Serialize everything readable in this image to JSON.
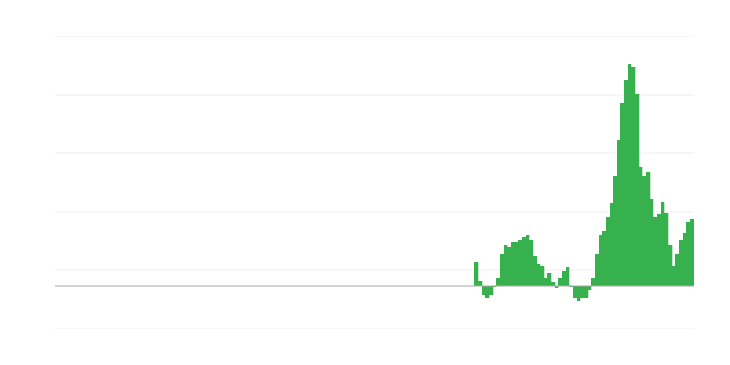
{
  "chart_data": {
    "type": "bar",
    "color": "#36b14d",
    "grid": true,
    "ylim": [
      -47,
      273
    ],
    "yticks": [
      -47,
      17,
      81,
      145,
      209,
      273
    ],
    "values": [
      null,
      null,
      null,
      null,
      null,
      null,
      null,
      null,
      null,
      null,
      null,
      null,
      null,
      null,
      null,
      null,
      null,
      null,
      null,
      null,
      null,
      null,
      null,
      null,
      null,
      null,
      null,
      null,
      null,
      null,
      null,
      null,
      null,
      null,
      null,
      null,
      null,
      null,
      null,
      null,
      null,
      null,
      null,
      null,
      null,
      null,
      null,
      null,
      null,
      null,
      null,
      null,
      null,
      null,
      null,
      null,
      null,
      null,
      null,
      null,
      null,
      null,
      null,
      null,
      null,
      null,
      null,
      null,
      null,
      null,
      null,
      null,
      null,
      null,
      null,
      null,
      null,
      null,
      null,
      null,
      null,
      null,
      null,
      null,
      null,
      null,
      null,
      null,
      null,
      null,
      null,
      null,
      null,
      null,
      null,
      null,
      null,
      null,
      null,
      null,
      null,
      null,
      null,
      null,
      null,
      null,
      null,
      null,
      null,
      null,
      null,
      null,
      null,
      null,
      null,
      26,
      5,
      -10,
      -14,
      -10,
      -2,
      8,
      35,
      45,
      42,
      48,
      48,
      50,
      53,
      55,
      50,
      32,
      24,
      22,
      8,
      14,
      4,
      -3,
      8,
      16,
      20,
      -2,
      -14,
      -17,
      -14,
      -14,
      -5,
      8,
      35,
      55,
      60,
      75,
      90,
      120,
      160,
      200,
      225,
      243,
      240,
      210,
      130,
      120,
      125,
      95,
      75,
      78,
      92,
      80,
      45,
      22,
      35,
      50,
      58,
      70,
      73
    ]
  }
}
